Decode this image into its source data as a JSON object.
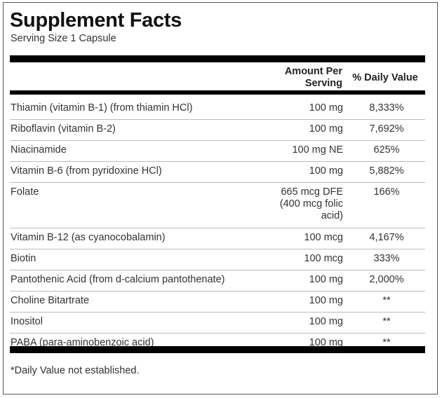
{
  "title": "Supplement Facts",
  "serving_size": "Serving Size 1 Capsule",
  "headers": {
    "amount_line1": "Amount Per",
    "amount_line2": "Serving",
    "daily_value": "% Daily Value"
  },
  "rows": [
    {
      "name": "Thiamin (vitamin B-1) (from thiamin HCl)",
      "amount": [
        "100 mg"
      ],
      "dv": "8,333%"
    },
    {
      "name": "Riboflavin (vitamin B-2)",
      "amount": [
        "100 mg"
      ],
      "dv": "7,692%"
    },
    {
      "name": "Niacinamide",
      "amount": [
        "100 mg NE"
      ],
      "dv": "625%"
    },
    {
      "name": "Vitamin B-6 (from pyridoxine HCl)",
      "amount": [
        "100 mg"
      ],
      "dv": "5,882%"
    },
    {
      "name": "Folate",
      "amount": [
        "665 mcg DFE",
        "(400 mcg folic",
        "acid)"
      ],
      "dv": "166%"
    },
    {
      "name": "Vitamin B-12 (as cyanocobalamin)",
      "amount": [
        "100 mcg"
      ],
      "dv": "4,167%"
    },
    {
      "name": "Biotin",
      "amount": [
        "100 mcg"
      ],
      "dv": "333%"
    },
    {
      "name": "Pantothenic Acid (from d-calcium pantothenate)",
      "amount": [
        "100 mg"
      ],
      "dv": "2,000%"
    },
    {
      "name": "Choline Bitartrate",
      "amount": [
        "100 mg"
      ],
      "dv": "**"
    },
    {
      "name": "Inositol",
      "amount": [
        "100 mg"
      ],
      "dv": "**"
    },
    {
      "name": "PABA (para-aminobenzoic acid)",
      "amount": [
        "100 mg"
      ],
      "dv": "**"
    }
  ],
  "footnote": "*Daily Value not established."
}
